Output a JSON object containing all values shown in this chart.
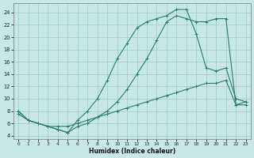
{
  "xlabel": "Humidex (Indice chaleur)",
  "background_color": "#c8e8e5",
  "grid_color": "#a0ccca",
  "line_color": "#2d7a72",
  "xlim": [
    -0.5,
    23.5
  ],
  "ylim": [
    3.5,
    25.5
  ],
  "xtick_values": [
    0,
    1,
    2,
    3,
    4,
    5,
    6,
    7,
    8,
    9,
    10,
    11,
    12,
    13,
    14,
    15,
    16,
    17,
    18,
    19,
    20,
    21,
    22,
    23
  ],
  "ytick_values": [
    4,
    6,
    8,
    10,
    12,
    14,
    16,
    18,
    20,
    22,
    24
  ],
  "series_A_x": [
    0,
    1,
    2,
    3,
    4,
    5,
    6,
    7,
    8,
    9,
    10,
    11,
    12,
    13,
    14,
    15,
    16,
    17,
    18,
    19,
    20,
    21,
    22,
    23
  ],
  "series_A_y": [
    8.0,
    6.5,
    6.0,
    5.5,
    5.0,
    4.5,
    6.5,
    8.0,
    10.0,
    13.0,
    16.5,
    19.0,
    21.5,
    22.5,
    23.0,
    23.5,
    24.5,
    24.5,
    20.5,
    15.0,
    14.5,
    15.0,
    10.0,
    9.5
  ],
  "series_B_x": [
    0,
    1,
    2,
    3,
    4,
    5,
    6,
    7,
    8,
    9,
    10,
    11,
    12,
    13,
    14,
    15,
    16,
    17,
    18,
    19,
    20,
    21,
    22,
    23
  ],
  "series_B_y": [
    8.0,
    6.5,
    6.0,
    5.5,
    5.0,
    4.5,
    5.5,
    6.0,
    7.0,
    8.0,
    9.5,
    11.5,
    14.0,
    16.5,
    19.5,
    22.5,
    23.5,
    23.0,
    22.5,
    22.5,
    23.0,
    23.0,
    9.0,
    9.5
  ],
  "series_C_x": [
    0,
    1,
    2,
    3,
    4,
    5,
    6,
    7,
    8,
    9,
    10,
    11,
    12,
    13,
    14,
    15,
    16,
    17,
    18,
    19,
    20,
    21,
    22,
    23
  ],
  "series_C_y": [
    7.5,
    6.5,
    6.0,
    5.5,
    5.5,
    5.5,
    6.0,
    6.5,
    7.0,
    7.5,
    8.0,
    8.5,
    9.0,
    9.5,
    10.0,
    10.5,
    11.0,
    11.5,
    12.0,
    12.5,
    12.5,
    13.0,
    9.0,
    9.0
  ]
}
